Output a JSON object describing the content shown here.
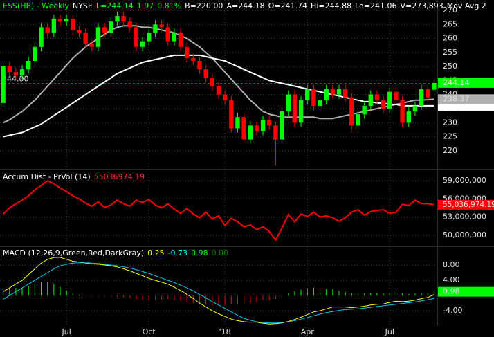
{
  "chart_data": [
    {
      "type": "candlestick",
      "header": [
        {
          "text": "ESS(HB) - Weekly",
          "color": "#00ff00"
        },
        {
          "text": "NYSE",
          "color": "#ffffff"
        },
        {
          "text": "L=244.14",
          "color": "#00ff00"
        },
        {
          "text": "1.97",
          "color": "#00ff00"
        },
        {
          "text": "0.81%",
          "color": "#00ff00"
        },
        {
          "text": "B=220.00",
          "color": "#ffffff"
        },
        {
          "text": "A=244.18",
          "color": "#ffffff"
        },
        {
          "text": "O=241.74",
          "color": "#ffffff"
        },
        {
          "text": "Hi=244.88",
          "color": "#ffffff"
        },
        {
          "text": "Lo=241.06",
          "color": "#ffffff"
        },
        {
          "text": "V=273,893",
          "color": "#ffffff"
        },
        {
          "text": "Mov Avg 2",
          "color": "#ffffff"
        }
      ],
      "categories": [
        null,
        null,
        null,
        null,
        null,
        null,
        null,
        null,
        null,
        null,
        "Jul",
        null,
        null,
        null,
        null,
        null,
        null,
        null,
        null,
        null,
        null,
        null,
        null,
        "Oct",
        null,
        null,
        null,
        null,
        null,
        null,
        null,
        null,
        null,
        null,
        null,
        "'18",
        null,
        null,
        null,
        null,
        null,
        null,
        null,
        null,
        null,
        null,
        null,
        null,
        "Apr",
        null,
        null,
        null,
        null,
        null,
        null,
        null,
        null,
        null,
        null,
        null,
        null,
        "Jul",
        null,
        null,
        null,
        null,
        null,
        null,
        null
      ],
      "open": [
        237,
        250,
        248,
        247,
        249,
        252,
        257,
        264,
        262,
        267,
        266,
        267,
        263,
        262,
        258,
        257,
        264,
        262,
        266,
        268,
        266,
        264,
        257,
        259,
        262,
        265,
        264,
        259,
        262,
        257,
        253,
        252,
        249,
        246,
        243,
        240,
        238,
        228,
        232,
        224,
        229,
        227,
        231,
        229,
        224,
        234,
        240,
        230,
        238,
        242,
        236,
        238,
        242,
        240,
        242,
        239,
        229,
        233,
        236,
        240,
        238,
        235,
        241,
        238,
        230,
        234,
        236,
        242,
        241.74
      ],
      "high": [
        251.5,
        251.5,
        249.5,
        250.5,
        253.5,
        258.5,
        265.5,
        265.5,
        268.5,
        268.5,
        268.5,
        268.5,
        264.5,
        263.5,
        259.5,
        265.5,
        265.5,
        267.5,
        269.5,
        269.5,
        267.5,
        265.5,
        260.5,
        263.5,
        266.5,
        266.5,
        265.5,
        263.5,
        263.5,
        258.5,
        254.5,
        253.5,
        250.5,
        247.5,
        244.5,
        241.5,
        239.5,
        233.5,
        233.5,
        230.5,
        230.5,
        232.5,
        232.5,
        230.5,
        235.5,
        241.5,
        241.5,
        239.5,
        243.5,
        243.5,
        239.5,
        243.5,
        243.5,
        243.5,
        243.5,
        240.5,
        234.5,
        237.5,
        241.5,
        241.5,
        239.5,
        242.5,
        242.5,
        239.5,
        235.5,
        237.5,
        243.5,
        243.5,
        244.88
      ],
      "low": [
        235.5,
        246.5,
        245.5,
        245.5,
        247.5,
        250.5,
        255.5,
        260.5,
        260.5,
        264.5,
        264.5,
        261.5,
        260.5,
        256.5,
        255.5,
        255.5,
        260.5,
        260.5,
        264.5,
        264.5,
        262.5,
        255.5,
        255.5,
        257.5,
        260.5,
        262.5,
        257.5,
        257.5,
        255.5,
        251.5,
        250.5,
        247.5,
        244.5,
        241.5,
        238.5,
        236.5,
        226.5,
        226.5,
        222.5,
        222.5,
        225.5,
        225.5,
        227.5,
        215,
        222.5,
        232.5,
        228.5,
        228.5,
        236.5,
        234.5,
        234.5,
        236.5,
        238.5,
        238.5,
        237.5,
        227.5,
        227.5,
        231.5,
        234.5,
        236.5,
        233.5,
        233.5,
        236.5,
        228.5,
        228.5,
        232.5,
        234.5,
        237.5,
        241.06
      ],
      "close": [
        250,
        248,
        247,
        249,
        252,
        257,
        264,
        262,
        267,
        266,
        267,
        263,
        262,
        258,
        257,
        264,
        262,
        266,
        268,
        266,
        264,
        257,
        259,
        262,
        265,
        264,
        259,
        262,
        257,
        253,
        252,
        249,
        246,
        243,
        240,
        238,
        228,
        232,
        224,
        229,
        227,
        231,
        229,
        224,
        234,
        240,
        230,
        238,
        242,
        236,
        238,
        242,
        240,
        242,
        239,
        229,
        233,
        236,
        240,
        238,
        235,
        241,
        238,
        230,
        234,
        236,
        242,
        239,
        244.14
      ],
      "up_color": "#00ff00",
      "down_color": "#ff0000",
      "series": [
        {
          "color": "#b0b0b0",
          "values": [
            230,
            231,
            232.5,
            234,
            236,
            238,
            240.5,
            243,
            245.5,
            248,
            250.5,
            253,
            255,
            257,
            258.5,
            260,
            261.5,
            263,
            264,
            264.5,
            264.5,
            264.5,
            264,
            264,
            263.5,
            263,
            262.5,
            262,
            261,
            260,
            258.5,
            257,
            255,
            253,
            250.5,
            248,
            245.5,
            243,
            240.5,
            238,
            236,
            234,
            233,
            232.5,
            232,
            232,
            232,
            232,
            232,
            232,
            231.5,
            231.5,
            231.5,
            232,
            232.5,
            233,
            233.5,
            234,
            234.5,
            235,
            235.5,
            236,
            236.5,
            237,
            237.5,
            238,
            238,
            238.2,
            238.37
          ]
        },
        {
          "color": "#ffffff",
          "values": [
            225,
            225.5,
            226,
            226.5,
            227.5,
            228.5,
            229.5,
            231,
            232.5,
            234,
            235.5,
            237,
            238.5,
            240,
            241.5,
            243,
            244.5,
            246,
            247.5,
            248.5,
            249.5,
            250.5,
            251.5,
            252,
            252.5,
            253,
            253.5,
            254,
            254,
            254,
            254,
            254,
            253.5,
            253,
            252.5,
            252,
            251,
            250,
            249,
            248,
            247,
            246,
            245,
            244.5,
            244,
            243.5,
            243,
            242.5,
            242,
            241.5,
            241,
            240.5,
            240,
            239.5,
            239,
            238.5,
            238,
            237.5,
            237.5,
            237,
            237,
            236.5,
            236.5,
            236,
            236,
            236,
            236,
            236,
            236
          ]
        }
      ],
      "reference_line": {
        "value": 244,
        "label": "244.00",
        "color": "#ff0000"
      },
      "ylim": [
        213.8,
        273.7
      ],
      "yticks": [
        220,
        225,
        230,
        235,
        240,
        245,
        250,
        255,
        260,
        265,
        270
      ],
      "grid": true
    },
    {
      "type": "line",
      "header": [
        {
          "text": "Accum Dist - PrVol (14)",
          "color": "#ffffff"
        },
        {
          "text": "55036974.19",
          "color": "#ff3030"
        }
      ],
      "series": [
        {
          "color": "#ff0000",
          "values": [
            53500000,
            54500000,
            55200000,
            55800000,
            56500000,
            57500000,
            58200000,
            59000000,
            58500000,
            57800000,
            57200000,
            56500000,
            56000000,
            55300000,
            54800000,
            55500000,
            54600000,
            55000000,
            55800000,
            55200000,
            54800000,
            55800000,
            55400000,
            55900000,
            55000000,
            54500000,
            55200000,
            54300000,
            53600000,
            54400000,
            53500000,
            52900000,
            53800000,
            52700000,
            53200000,
            51600000,
            52800000,
            52200000,
            51400000,
            51700000,
            50900000,
            51400000,
            50600000,
            49200000,
            51200000,
            53400000,
            52200000,
            53500000,
            53100000,
            53800000,
            53000000,
            53200000,
            52900000,
            52300000,
            52900000,
            53800000,
            54200000,
            53300000,
            53900000,
            54100000,
            54200000,
            53600000,
            53800000,
            55100000,
            54900000,
            55800000,
            55200000,
            55200000,
            55036974.19
          ]
        }
      ],
      "last_value_label": "55,036,974.19",
      "ylim": [
        48270000,
        60620000
      ],
      "yticks": [
        {
          "value": 50000000,
          "label": "50,000,000"
        },
        {
          "value": 53000000,
          "label": "53,000,000"
        },
        {
          "value": 56000000,
          "label": "56,000,000"
        },
        {
          "value": 59000000,
          "label": "59,000,000"
        }
      ],
      "grid": true
    },
    {
      "type": "macd",
      "header": [
        {
          "text": "MACD (12,26,9,Green,Red,DarkGray)",
          "color": "#ffffff"
        },
        {
          "text": "0.25",
          "color": "#ffff00"
        },
        {
          "text": "-0.73",
          "color": "#00ffff"
        },
        {
          "text": "0.98",
          "color": "#00ff00"
        },
        {
          "text": "0.00",
          "color": "#008000"
        }
      ],
      "series": [
        {
          "color": "#ffff00",
          "values": [
            1,
            2,
            3,
            4,
            5.5,
            7,
            8.5,
            9.5,
            10,
            10,
            9.5,
            9,
            8.8,
            8.5,
            8.3,
            8.2,
            8,
            7.8,
            7.5,
            7,
            6.5,
            5.8,
            5.2,
            4.5,
            4,
            3.5,
            3,
            2.2,
            1.3,
            0.3,
            -0.8,
            -2,
            -3,
            -4,
            -4.8,
            -5.5,
            -6.2,
            -6.6,
            -6.9,
            -7,
            -7,
            -7.3,
            -7.5,
            -7.4,
            -7.2,
            -6.8,
            -6.3,
            -5.7,
            -5,
            -4.3,
            -4,
            -3.5,
            -3,
            -3,
            -3,
            -3.2,
            -3,
            -2.8,
            -2.5,
            -2.3,
            -2.2,
            -1.8,
            -1.5,
            -1.6,
            -1.5,
            -1.2,
            -0.8,
            -0.5,
            0.25
          ]
        },
        {
          "color": "#00c8e8",
          "values": [
            -1,
            0,
            1,
            2,
            3,
            4,
            5,
            6,
            7,
            7.8,
            8.2,
            8.5,
            8.6,
            8.6,
            8.5,
            8.4,
            8.2,
            8,
            7.8,
            7.5,
            7.2,
            6.8,
            6.3,
            5.8,
            5.2,
            4.6,
            4,
            3.4,
            2.7,
            2,
            1.2,
            0.3,
            -0.6,
            -1.6,
            -2.5,
            -3.4,
            -4.3,
            -5.2,
            -6,
            -6.5,
            -6.9,
            -7.1,
            -7.2,
            -7.2,
            -7.1,
            -6.9,
            -6.6,
            -6.2,
            -5.8,
            -5.3,
            -4.9,
            -4.5,
            -4.2,
            -3.9,
            -3.7,
            -3.6,
            -3.5,
            -3.3,
            -3.1,
            -2.9,
            -2.7,
            -2.5,
            -2.3,
            -2.1,
            -1.9,
            -1.7,
            -1.4,
            -1.1,
            -0.73
          ]
        }
      ],
      "histogram": [
        2,
        2,
        2,
        2,
        2.5,
        3,
        3.5,
        3.5,
        3,
        2.2,
        1.3,
        0.5,
        0.2,
        -0.1,
        -0.2,
        -0.2,
        -0.2,
        -0.2,
        -0.3,
        -0.5,
        -0.7,
        -1,
        -1.1,
        -1.3,
        -1.2,
        -1.1,
        -1,
        -1.2,
        -1.4,
        -1.7,
        -2,
        -2.3,
        -2.4,
        -2.6,
        -2.4,
        -2.5,
        -2.3,
        -2.4,
        -2.2,
        -2,
        -1.8,
        -1.2,
        -1.2,
        -0.9,
        -0.3,
        0.5,
        1.1,
        1.5,
        1.8,
        2.1,
        1.9,
        1.7,
        1.7,
        1.2,
        0.9,
        0.5,
        0.5,
        0.5,
        0.6,
        0.6,
        0.5,
        0.7,
        0.8,
        0.5,
        0.4,
        0.5,
        0.6,
        0.6,
        0.98
      ],
      "up_color": "#00ff00",
      "down_color": "#ff0000",
      "ylim": [
        -7.8,
        12.55
      ],
      "yticks": [
        {
          "value": -4,
          "label": "-4.00"
        },
        {
          "value": 4,
          "label": "4.00"
        },
        {
          "value": 8,
          "label": "8.00"
        }
      ],
      "grid": true
    }
  ]
}
